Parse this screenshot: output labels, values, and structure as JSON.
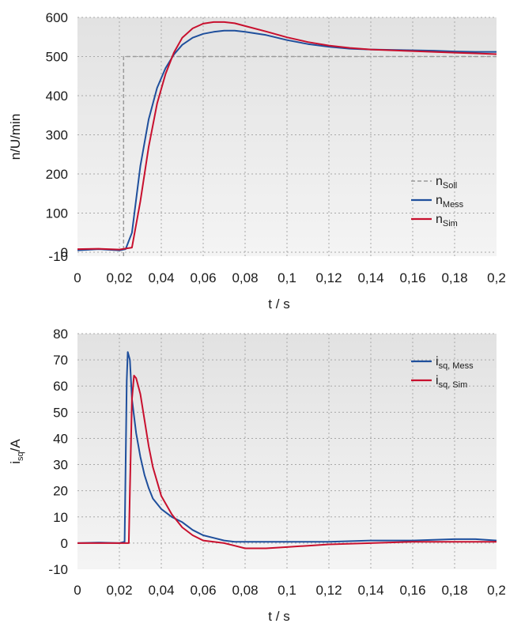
{
  "chart_data": [
    {
      "type": "line",
      "xlabel": "t / s",
      "ylabel": "n/U/min",
      "xlim": [
        0,
        0.2
      ],
      "ylim": [
        -10,
        600
      ],
      "x_ticks": [
        "0",
        "0,02",
        "0,04",
        "0,06",
        "0,08",
        "0,1",
        "0,12",
        "0,14",
        "0,16",
        "0,18",
        "0,2"
      ],
      "y_ticks": [
        "600",
        "500",
        "400",
        "300",
        "200",
        "100",
        "0",
        "-10"
      ],
      "grid": true,
      "legend_position": "lower-right",
      "series": [
        {
          "name": "n_Soll",
          "label_main": "n",
          "label_sub": "Soll",
          "color": "#9a9a9a",
          "style": "dashed",
          "points": [
            [
              0.022,
              -10
            ],
            [
              0.022,
              500
            ],
            [
              0.2,
              500
            ]
          ]
        },
        {
          "name": "n_Mess",
          "label_main": "n",
          "label_sub": "Mess",
          "color": "#1f4f9c",
          "style": "solid",
          "points": [
            [
              0,
              5
            ],
            [
              0.01,
              8
            ],
            [
              0.02,
              5
            ],
            [
              0.023,
              8
            ],
            [
              0.026,
              50
            ],
            [
              0.03,
              220
            ],
            [
              0.034,
              340
            ],
            [
              0.038,
              420
            ],
            [
              0.042,
              470
            ],
            [
              0.046,
              505
            ],
            [
              0.05,
              530
            ],
            [
              0.055,
              548
            ],
            [
              0.06,
              558
            ],
            [
              0.065,
              563
            ],
            [
              0.07,
              566
            ],
            [
              0.075,
              566
            ],
            [
              0.08,
              563
            ],
            [
              0.09,
              555
            ],
            [
              0.1,
              542
            ],
            [
              0.11,
              532
            ],
            [
              0.12,
              525
            ],
            [
              0.13,
              520
            ],
            [
              0.14,
              518
            ],
            [
              0.15,
              517
            ],
            [
              0.16,
              516
            ],
            [
              0.17,
              515
            ],
            [
              0.18,
              513
            ],
            [
              0.19,
              512
            ],
            [
              0.2,
              512
            ]
          ]
        },
        {
          "name": "n_Sim",
          "label_main": "n",
          "label_sub": "Sim",
          "color": "#c8102e",
          "style": "solid",
          "points": [
            [
              0,
              8
            ],
            [
              0.01,
              9
            ],
            [
              0.02,
              7
            ],
            [
              0.026,
              12
            ],
            [
              0.03,
              130
            ],
            [
              0.034,
              270
            ],
            [
              0.038,
              380
            ],
            [
              0.042,
              455
            ],
            [
              0.046,
              510
            ],
            [
              0.05,
              548
            ],
            [
              0.055,
              572
            ],
            [
              0.06,
              584
            ],
            [
              0.065,
              588
            ],
            [
              0.07,
              588
            ],
            [
              0.075,
              585
            ],
            [
              0.08,
              578
            ],
            [
              0.09,
              564
            ],
            [
              0.1,
              549
            ],
            [
              0.11,
              537
            ],
            [
              0.12,
              528
            ],
            [
              0.13,
              522
            ],
            [
              0.14,
              518
            ],
            [
              0.15,
              516
            ],
            [
              0.16,
              514
            ],
            [
              0.17,
              512
            ],
            [
              0.18,
              510
            ],
            [
              0.19,
              508
            ],
            [
              0.2,
              506
            ]
          ]
        }
      ]
    },
    {
      "type": "line",
      "xlabel": "t / s",
      "ylabel_main": "i",
      "ylabel_sub": "sq",
      "ylabel_tail": "/A",
      "xlim": [
        0,
        0.2
      ],
      "ylim": [
        -10,
        80
      ],
      "x_ticks": [
        "0",
        "0,02",
        "0,04",
        "0,06",
        "0,08",
        "0,1",
        "0,12",
        "0,14",
        "0,16",
        "0,18",
        "0,2"
      ],
      "y_ticks": [
        "80",
        "70",
        "60",
        "50",
        "40",
        "30",
        "20",
        "10",
        "0",
        "-10"
      ],
      "grid": true,
      "legend_position": "top-right",
      "series": [
        {
          "name": "i_sq, Mess",
          "label_main": "i",
          "label_sub": "sq, Mess",
          "color": "#1f4f9c",
          "style": "solid",
          "points": [
            [
              0,
              0
            ],
            [
              0.01,
              0.2
            ],
            [
              0.02,
              0
            ],
            [
              0.0225,
              0.5
            ],
            [
              0.023,
              30
            ],
            [
              0.0235,
              62
            ],
            [
              0.024,
              73
            ],
            [
              0.025,
              70
            ],
            [
              0.026,
              55
            ],
            [
              0.028,
              42
            ],
            [
              0.03,
              33
            ],
            [
              0.032,
              26
            ],
            [
              0.034,
              21
            ],
            [
              0.036,
              17
            ],
            [
              0.04,
              13
            ],
            [
              0.045,
              10
            ],
            [
              0.05,
              8
            ],
            [
              0.055,
              5
            ],
            [
              0.06,
              3
            ],
            [
              0.065,
              2
            ],
            [
              0.07,
              1
            ],
            [
              0.075,
              0.5
            ],
            [
              0.08,
              0.5
            ],
            [
              0.09,
              0.5
            ],
            [
              0.1,
              0.5
            ],
            [
              0.12,
              0.5
            ],
            [
              0.14,
              1
            ],
            [
              0.16,
              1
            ],
            [
              0.18,
              1.5
            ],
            [
              0.19,
              1.5
            ],
            [
              0.2,
              1
            ]
          ]
        },
        {
          "name": "i_sq, Sim",
          "label_main": "i",
          "label_sub": "sq, Sim",
          "color": "#c8102e",
          "style": "solid",
          "points": [
            [
              0,
              0
            ],
            [
              0.01,
              0
            ],
            [
              0.02,
              0
            ],
            [
              0.0245,
              0
            ],
            [
              0.025,
              20
            ],
            [
              0.026,
              55
            ],
            [
              0.027,
              64
            ],
            [
              0.028,
              63
            ],
            [
              0.03,
              57
            ],
            [
              0.032,
              47
            ],
            [
              0.034,
              37
            ],
            [
              0.036,
              29
            ],
            [
              0.04,
              18
            ],
            [
              0.045,
              11
            ],
            [
              0.05,
              6
            ],
            [
              0.055,
              3
            ],
            [
              0.06,
              1
            ],
            [
              0.065,
              0.5
            ],
            [
              0.07,
              0
            ],
            [
              0.075,
              -1
            ],
            [
              0.08,
              -2
            ],
            [
              0.09,
              -2
            ],
            [
              0.1,
              -1.5
            ],
            [
              0.11,
              -1
            ],
            [
              0.12,
              -0.5
            ],
            [
              0.14,
              0
            ],
            [
              0.16,
              0.5
            ],
            [
              0.18,
              0.5
            ],
            [
              0.2,
              0.5
            ]
          ]
        }
      ]
    }
  ]
}
